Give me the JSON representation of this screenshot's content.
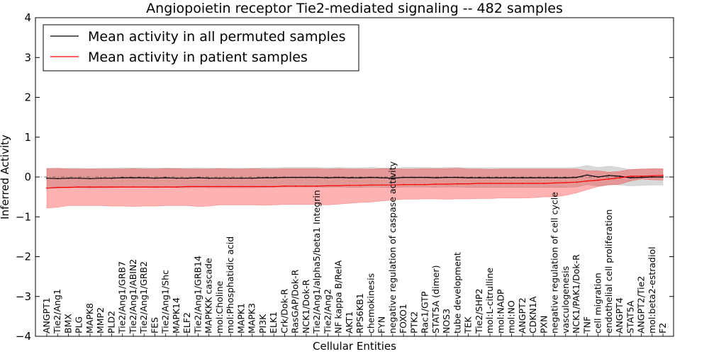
{
  "chart_data": {
    "type": "line",
    "title": "Angiopoietin receptor Tie2-mediated signaling -- 482 samples",
    "xlabel": "Cellular Entities",
    "ylabel": "Inferred Activity",
    "ylim": [
      -4,
      4
    ],
    "yticks": [
      "4",
      "3",
      "2",
      "1",
      "0",
      "−1",
      "−2",
      "−3",
      "−4"
    ],
    "categories": [
      "ANGPT1",
      "Tie2/Ang1",
      "BMX",
      "PLG",
      "MAPK8",
      "MMP2",
      "PLD2",
      "Tie2/Ang1/GRB7",
      "Tie2/Ang1/ABIN2",
      "Tie2/Ang1/GRB2",
      "FES",
      "Tie2/Ang1/Shc",
      "MAPK14",
      "ELF2",
      "Tie2/Ang1/GRB14",
      "MAPKKK cascade",
      "mol:Choline",
      "mol:Phosphatidic acid",
      "MAPK1",
      "MAPK3",
      "PI3K",
      "ELK1",
      "Crk/Dok-R",
      "RasGAP/Dok-R",
      "NCK1/Dok-R",
      "Tie2/Ang1/alpha5/beta1 Integrin",
      "Tie2/Ang2",
      "NF kappa B/RelA",
      "AKT1",
      "RPS6KB1",
      "chemokinesis",
      "FYN",
      "negative regulation of caspase activity",
      "FOXO1",
      "PTK2",
      "Rac1/GTP",
      "STAT5A (dimer)",
      "NOS3",
      "tube development",
      "TEK",
      "Tie2/SHP2",
      "mol:L-citrulline",
      "mol:NADP",
      "mol:NO",
      "ANGPT2",
      "CDKN1A",
      "PXN",
      "negative regulation of cell cycle",
      "vasculogenesis",
      "NCK1/PAK1/Dok-R",
      "TNF",
      "cell migration",
      "endothelial cell proliferation",
      "ANGPT4",
      "STAT5A",
      "ANGPT2/Tie2",
      "mol:beta2-estradiol",
      "F2"
    ],
    "legend_position": "upper-left",
    "series": [
      {
        "name": "Mean activity in all permuted samples",
        "color": "#000000",
        "values": [
          -0.03,
          -0.04,
          -0.03,
          -0.03,
          -0.04,
          -0.03,
          -0.03,
          -0.02,
          -0.02,
          -0.02,
          -0.03,
          -0.02,
          -0.03,
          -0.03,
          -0.02,
          -0.03,
          -0.03,
          -0.03,
          -0.03,
          -0.03,
          -0.02,
          -0.02,
          -0.01,
          -0.01,
          -0.01,
          -0.01,
          -0.02,
          -0.01,
          -0.02,
          -0.02,
          -0.01,
          -0.02,
          -0.03,
          -0.01,
          -0.01,
          -0.01,
          -0.02,
          -0.01,
          -0.01,
          -0.02,
          -0.02,
          -0.02,
          -0.02,
          -0.02,
          -0.02,
          -0.02,
          -0.02,
          -0.02,
          -0.02,
          -0.01,
          0.05,
          0.0,
          0.04,
          0.02,
          -0.02,
          -0.01,
          0.0,
          0.0
        ],
        "band": {
          "color": "#808080",
          "lower": [
            -0.28,
            -0.28,
            -0.27,
            -0.27,
            -0.28,
            -0.27,
            -0.27,
            -0.26,
            -0.26,
            -0.26,
            -0.27,
            -0.26,
            -0.27,
            -0.27,
            -0.26,
            -0.27,
            -0.27,
            -0.27,
            -0.27,
            -0.27,
            -0.26,
            -0.26,
            -0.25,
            -0.25,
            -0.25,
            -0.25,
            -0.26,
            -0.25,
            -0.26,
            -0.26,
            -0.25,
            -0.26,
            -0.27,
            -0.25,
            -0.25,
            -0.25,
            -0.26,
            -0.25,
            -0.25,
            -0.26,
            -0.26,
            -0.26,
            -0.26,
            -0.26,
            -0.26,
            -0.26,
            -0.26,
            -0.26,
            -0.26,
            -0.25,
            -0.19,
            -0.23,
            -0.19,
            -0.2,
            -0.22,
            -0.21,
            -0.2,
            -0.2
          ],
          "upper": [
            0.22,
            0.21,
            0.22,
            0.22,
            0.21,
            0.22,
            0.22,
            0.23,
            0.23,
            0.23,
            0.22,
            0.23,
            0.22,
            0.22,
            0.23,
            0.22,
            0.22,
            0.22,
            0.22,
            0.22,
            0.23,
            0.23,
            0.24,
            0.24,
            0.24,
            0.24,
            0.23,
            0.24,
            0.23,
            0.23,
            0.24,
            0.23,
            0.22,
            0.24,
            0.24,
            0.24,
            0.23,
            0.24,
            0.24,
            0.23,
            0.23,
            0.23,
            0.23,
            0.23,
            0.23,
            0.23,
            0.23,
            0.23,
            0.23,
            0.24,
            0.29,
            0.24,
            0.27,
            0.24,
            0.18,
            0.2,
            0.2,
            0.2
          ]
        }
      },
      {
        "name": "Mean activity in patient samples",
        "color": "#ff0000",
        "values": [
          -0.28,
          -0.26,
          -0.26,
          -0.25,
          -0.25,
          -0.25,
          -0.25,
          -0.25,
          -0.25,
          -0.25,
          -0.25,
          -0.25,
          -0.25,
          -0.24,
          -0.24,
          -0.24,
          -0.24,
          -0.24,
          -0.24,
          -0.24,
          -0.24,
          -0.24,
          -0.23,
          -0.23,
          -0.23,
          -0.23,
          -0.22,
          -0.22,
          -0.21,
          -0.21,
          -0.2,
          -0.2,
          -0.2,
          -0.19,
          -0.19,
          -0.19,
          -0.18,
          -0.18,
          -0.17,
          -0.17,
          -0.16,
          -0.16,
          -0.16,
          -0.16,
          -0.16,
          -0.16,
          -0.16,
          -0.15,
          -0.14,
          -0.13,
          -0.1,
          -0.08,
          -0.05,
          -0.02,
          0.02,
          0.02,
          0.03,
          0.04
        ],
        "band": {
          "color": "#ff0000",
          "lower": [
            -0.78,
            -0.76,
            -0.72,
            -0.72,
            -0.72,
            -0.72,
            -0.73,
            -0.73,
            -0.74,
            -0.73,
            -0.73,
            -0.72,
            -0.72,
            -0.72,
            -0.74,
            -0.73,
            -0.7,
            -0.7,
            -0.7,
            -0.7,
            -0.71,
            -0.7,
            -0.69,
            -0.69,
            -0.69,
            -0.69,
            -0.7,
            -0.68,
            -0.66,
            -0.64,
            -0.63,
            -0.6,
            -0.58,
            -0.56,
            -0.56,
            -0.55,
            -0.55,
            -0.56,
            -0.55,
            -0.55,
            -0.54,
            -0.54,
            -0.53,
            -0.53,
            -0.53,
            -0.52,
            -0.5,
            -0.5,
            -0.46,
            -0.4,
            -0.32,
            -0.24,
            -0.2,
            -0.18,
            -0.1,
            -0.05,
            -0.07,
            -0.08
          ],
          "upper": [
            0.21,
            0.22,
            0.2,
            0.2,
            0.2,
            0.2,
            0.2,
            0.2,
            0.21,
            0.2,
            0.2,
            0.21,
            0.21,
            0.2,
            0.2,
            0.2,
            0.21,
            0.2,
            0.2,
            0.21,
            0.2,
            0.2,
            0.21,
            0.21,
            0.21,
            0.21,
            0.2,
            0.21,
            0.2,
            0.2,
            0.2,
            0.21,
            0.21,
            0.2,
            0.2,
            0.21,
            0.21,
            0.21,
            0.22,
            0.2,
            0.2,
            0.19,
            0.2,
            0.2,
            0.2,
            0.2,
            0.2,
            0.2,
            0.2,
            0.2,
            0.16,
            0.16,
            0.12,
            0.14,
            0.19,
            0.2,
            0.21,
            0.21
          ]
        }
      }
    ]
  }
}
